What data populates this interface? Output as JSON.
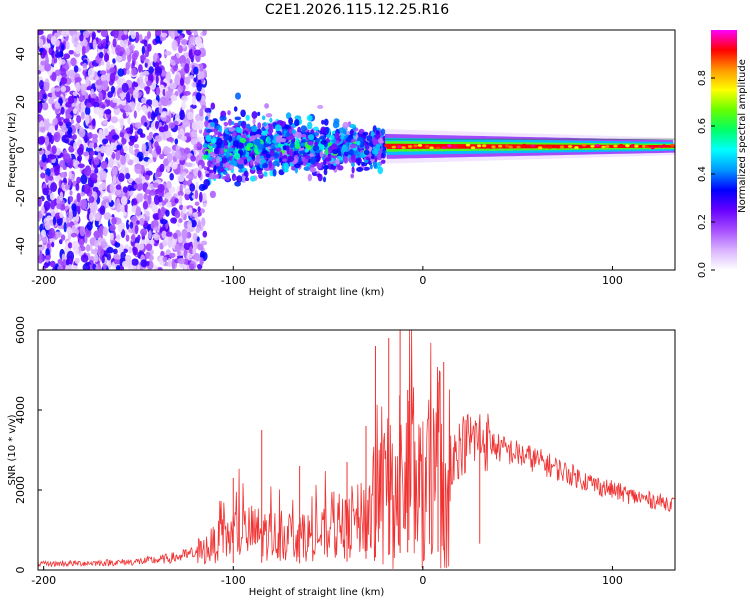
{
  "title": "C2E1.2026.115.12.25.R16",
  "chart_data": [
    {
      "type": "heatmap",
      "name": "spectrogram",
      "xlabel": "Height of straight line (km)",
      "ylabel": "Frequency (Hz)",
      "xlim": [
        -203,
        133
      ],
      "ylim": [
        -50,
        50
      ],
      "xticks": [
        -200,
        -100,
        0,
        100
      ],
      "yticks": [
        -40,
        -20,
        0,
        20,
        40
      ],
      "colorbar": {
        "label": "Normalized spectral amplitude",
        "range": [
          0,
          1
        ],
        "ticks": [
          0.0,
          0.2,
          0.4,
          0.6,
          0.8
        ],
        "tick_labels": [
          "0.0",
          "0.2",
          "0.4",
          "0.6",
          "0.8"
        ],
        "colors": [
          "#ffffff",
          "#d9b3ff",
          "#a64dff",
          "#6600ff",
          "#0000ff",
          "#0099ff",
          "#00ffff",
          "#00ff66",
          "#66ff00",
          "#ffff00",
          "#ff9900",
          "#ff0000",
          "#ff00ff"
        ]
      },
      "regions": [
        {
          "desc": "broadband noise",
          "x": [
            -203,
            -115
          ],
          "freq": [
            -50,
            50
          ],
          "amplitude": 0.15
        },
        {
          "desc": "onset band",
          "x": [
            -115,
            -20
          ],
          "freq_center": 1,
          "freq_half_width": [
            12,
            6
          ],
          "amplitude": 0.35
        },
        {
          "desc": "narrow carrier",
          "x": [
            -20,
            133
          ],
          "freq_center": 1.5,
          "freq_half_width": [
            2,
            1
          ],
          "amplitude": 0.9
        }
      ]
    },
    {
      "type": "line",
      "name": "snr",
      "xlabel": "Height of straight line (km)",
      "ylabel": "SNR (10 * v/v)",
      "xlim": [
        -203,
        133
      ],
      "ylim": [
        0,
        6000
      ],
      "xticks": [
        -200,
        -100,
        0,
        100
      ],
      "yticks": [
        0,
        2000,
        4000,
        6000
      ],
      "color": "#f03232",
      "x": [
        -203,
        -190,
        -180,
        -170,
        -160,
        -150,
        -140,
        -130,
        -120,
        -115,
        -110,
        -105,
        -100,
        -95,
        -90,
        -85,
        -80,
        -75,
        -70,
        -65,
        -60,
        -55,
        -50,
        -45,
        -40,
        -35,
        -30,
        -25,
        -20,
        -15,
        -10,
        -5,
        0,
        5,
        10,
        15,
        20,
        25,
        30,
        35,
        40,
        50,
        60,
        70,
        80,
        90,
        100,
        110,
        120,
        133
      ],
      "y": [
        150,
        160,
        170,
        180,
        190,
        210,
        250,
        320,
        420,
        500,
        650,
        780,
        880,
        920,
        950,
        900,
        870,
        850,
        830,
        820,
        840,
        860,
        900,
        960,
        1050,
        1200,
        1400,
        1600,
        1800,
        2000,
        2200,
        2200,
        1800,
        2100,
        2400,
        2800,
        3100,
        3250,
        3300,
        3200,
        3050,
        2900,
        2750,
        2550,
        2350,
        2150,
        2000,
        1850,
        1750,
        1650
      ],
      "peaks": [
        {
          "x": -100,
          "y": 2300
        },
        {
          "x": -85,
          "y": 3500
        },
        {
          "x": -65,
          "y": 2600
        },
        {
          "x": -40,
          "y": 2700
        },
        {
          "x": -30,
          "y": 3600
        },
        {
          "x": -25,
          "y": 5600
        },
        {
          "x": -18,
          "y": 5800
        },
        {
          "x": -12,
          "y": 6000
        },
        {
          "x": -8,
          "y": 4500
        },
        {
          "x": 8,
          "y": 4700
        },
        {
          "x": 11,
          "y": 5200
        },
        {
          "x": 30,
          "y": 3700
        }
      ]
    }
  ]
}
